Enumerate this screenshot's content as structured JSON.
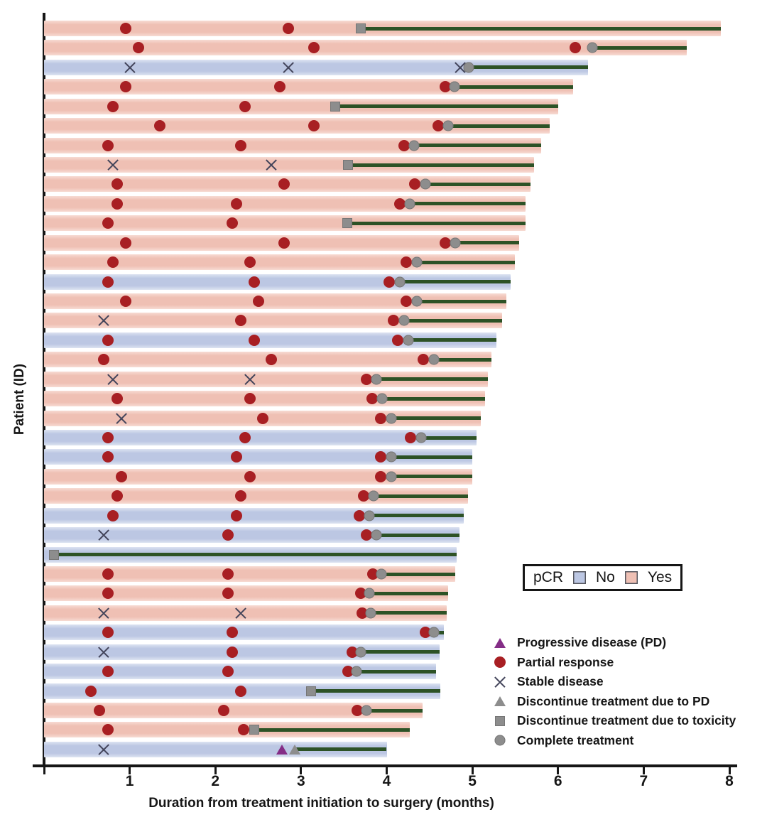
{
  "figure": {
    "x_axis": {
      "label": "Duration from treatment initiation to surgery (months)",
      "ticks": [
        1,
        2,
        3,
        4,
        5,
        6,
        7,
        8
      ],
      "min": 0,
      "max": 8
    },
    "y_axis": {
      "label": "Patient (ID)"
    }
  },
  "pcr_legend": {
    "title": "pCR",
    "items": [
      {
        "label": "No",
        "color": "#bcc7e3"
      },
      {
        "label": "Yes",
        "color": "#efc0b4"
      }
    ]
  },
  "marker_legend": [
    {
      "marker": "pd-triangle",
      "type": "pd",
      "label": "Progressive disease (PD)"
    },
    {
      "marker": "partial-response-circle",
      "type": "pr",
      "label": "Partial response"
    },
    {
      "marker": "stable-disease-x",
      "type": "sd",
      "label": "Stable disease"
    },
    {
      "marker": "discontinue-pd-triangle",
      "type": "dc_pd",
      "label": "Discontinue treatment due to PD"
    },
    {
      "marker": "discontinue-toxicity-square",
      "type": "dc_tox",
      "label": "Discontinue treatment due to toxicity"
    },
    {
      "marker": "complete-treatment-circle",
      "type": "complete",
      "label": "Complete treatment"
    }
  ],
  "colors": {
    "pcr_yes_bar": "#efc0b4",
    "pcr_no_bar": "#bcc7e3",
    "post_treatment_line": "#2d5226",
    "partial_response": "#a81f23",
    "gray_marker": "#8d8d8d",
    "pd_triangle": "#842d86",
    "stable_disease_x": "#42445a",
    "axis": "#161616"
  },
  "chart_data": {
    "type": "swimmer-bar",
    "x_unit": "months",
    "xlim": [
      0,
      8
    ],
    "title": "",
    "xlabel": "Duration from treatment initiation to surgery (months)",
    "ylabel": "Patient (ID)",
    "event_types": {
      "pr": "Partial response",
      "sd": "Stable disease",
      "pd": "Progressive disease (PD)",
      "dc_pd": "Discontinue treatment due to PD",
      "dc_tox": "Discontinue treatment due to toxicity",
      "complete": "Complete treatment"
    },
    "patients": [
      {
        "pcr": "Yes",
        "surgery_month": 7.9,
        "line_start_month": 3.7,
        "events": [
          {
            "type": "pr",
            "month": 0.95
          },
          {
            "type": "pr",
            "month": 2.85
          },
          {
            "type": "dc_tox",
            "month": 3.7
          }
        ]
      },
      {
        "pcr": "Yes",
        "surgery_month": 7.5,
        "line_start_month": 6.4,
        "events": [
          {
            "type": "pr",
            "month": 1.1
          },
          {
            "type": "pr",
            "month": 3.15
          },
          {
            "type": "pr",
            "month": 6.2
          },
          {
            "type": "complete",
            "month": 6.4
          }
        ]
      },
      {
        "pcr": "No",
        "surgery_month": 6.35,
        "line_start_month": 4.96,
        "events": [
          {
            "type": "sd",
            "month": 1.0
          },
          {
            "type": "sd",
            "month": 2.85
          },
          {
            "type": "sd",
            "month": 4.86
          },
          {
            "type": "complete",
            "month": 4.96
          }
        ]
      },
      {
        "pcr": "Yes",
        "surgery_month": 6.18,
        "line_start_month": 4.79,
        "events": [
          {
            "type": "pr",
            "month": 0.95
          },
          {
            "type": "pr",
            "month": 2.75
          },
          {
            "type": "pr",
            "month": 4.68
          },
          {
            "type": "complete",
            "month": 4.79
          }
        ]
      },
      {
        "pcr": "Yes",
        "surgery_month": 6.0,
        "line_start_month": 3.4,
        "events": [
          {
            "type": "pr",
            "month": 0.8
          },
          {
            "type": "pr",
            "month": 2.35
          },
          {
            "type": "dc_tox",
            "month": 3.4
          }
        ]
      },
      {
        "pcr": "Yes",
        "surgery_month": 5.9,
        "line_start_month": 4.72,
        "events": [
          {
            "type": "pr",
            "month": 1.35
          },
          {
            "type": "pr",
            "month": 3.15
          },
          {
            "type": "pr",
            "month": 4.6
          },
          {
            "type": "complete",
            "month": 4.72
          }
        ]
      },
      {
        "pcr": "Yes",
        "surgery_month": 5.8,
        "line_start_month": 4.32,
        "events": [
          {
            "type": "pr",
            "month": 0.75
          },
          {
            "type": "pr",
            "month": 2.3
          },
          {
            "type": "pr",
            "month": 4.2
          },
          {
            "type": "complete",
            "month": 4.32
          }
        ]
      },
      {
        "pcr": "Yes",
        "surgery_month": 5.72,
        "line_start_month": 3.55,
        "events": [
          {
            "type": "sd",
            "month": 0.8
          },
          {
            "type": "sd",
            "month": 2.65
          },
          {
            "type": "dc_tox",
            "month": 3.55
          }
        ]
      },
      {
        "pcr": "Yes",
        "surgery_month": 5.68,
        "line_start_month": 4.45,
        "events": [
          {
            "type": "pr",
            "month": 0.85
          },
          {
            "type": "pr",
            "month": 2.8
          },
          {
            "type": "pr",
            "month": 4.33
          },
          {
            "type": "complete",
            "month": 4.45
          }
        ]
      },
      {
        "pcr": "Yes",
        "surgery_month": 5.62,
        "line_start_month": 4.27,
        "events": [
          {
            "type": "pr",
            "month": 0.85
          },
          {
            "type": "pr",
            "month": 2.25
          },
          {
            "type": "pr",
            "month": 4.15
          },
          {
            "type": "complete",
            "month": 4.27
          }
        ]
      },
      {
        "pcr": "Yes",
        "surgery_month": 5.62,
        "line_start_month": 3.54,
        "events": [
          {
            "type": "pr",
            "month": 0.75
          },
          {
            "type": "pr",
            "month": 2.2
          },
          {
            "type": "dc_tox",
            "month": 3.54
          }
        ]
      },
      {
        "pcr": "Yes",
        "surgery_month": 5.55,
        "line_start_month": 4.8,
        "events": [
          {
            "type": "pr",
            "month": 0.95
          },
          {
            "type": "pr",
            "month": 2.8
          },
          {
            "type": "pr",
            "month": 4.68
          },
          {
            "type": "complete",
            "month": 4.8
          }
        ]
      },
      {
        "pcr": "Yes",
        "surgery_month": 5.5,
        "line_start_month": 4.35,
        "events": [
          {
            "type": "pr",
            "month": 0.8
          },
          {
            "type": "pr",
            "month": 2.4
          },
          {
            "type": "pr",
            "month": 4.23
          },
          {
            "type": "complete",
            "month": 4.35
          }
        ]
      },
      {
        "pcr": "No",
        "surgery_month": 5.45,
        "line_start_month": 4.15,
        "events": [
          {
            "type": "pr",
            "month": 0.75
          },
          {
            "type": "pr",
            "month": 2.45
          },
          {
            "type": "pr",
            "month": 4.03
          },
          {
            "type": "complete",
            "month": 4.15
          }
        ]
      },
      {
        "pcr": "Yes",
        "surgery_month": 5.4,
        "line_start_month": 4.35,
        "events": [
          {
            "type": "pr",
            "month": 0.95
          },
          {
            "type": "pr",
            "month": 2.5
          },
          {
            "type": "pr",
            "month": 4.23
          },
          {
            "type": "complete",
            "month": 4.35
          }
        ]
      },
      {
        "pcr": "Yes",
        "surgery_month": 5.35,
        "line_start_month": 4.2,
        "events": [
          {
            "type": "sd",
            "month": 0.7
          },
          {
            "type": "pr",
            "month": 2.3
          },
          {
            "type": "pr",
            "month": 4.08
          },
          {
            "type": "complete",
            "month": 4.2
          }
        ]
      },
      {
        "pcr": "No",
        "surgery_month": 5.28,
        "line_start_month": 4.25,
        "events": [
          {
            "type": "pr",
            "month": 0.75
          },
          {
            "type": "pr",
            "month": 2.45
          },
          {
            "type": "pr",
            "month": 4.13
          },
          {
            "type": "complete",
            "month": 4.25
          }
        ]
      },
      {
        "pcr": "Yes",
        "surgery_month": 5.22,
        "line_start_month": 4.55,
        "events": [
          {
            "type": "pr",
            "month": 0.7
          },
          {
            "type": "pr",
            "month": 2.65
          },
          {
            "type": "pr",
            "month": 4.43
          },
          {
            "type": "complete",
            "month": 4.55
          }
        ]
      },
      {
        "pcr": "Yes",
        "surgery_month": 5.18,
        "line_start_month": 3.88,
        "events": [
          {
            "type": "sd",
            "month": 0.8
          },
          {
            "type": "sd",
            "month": 2.4
          },
          {
            "type": "pr",
            "month": 3.76
          },
          {
            "type": "complete",
            "month": 3.88
          }
        ]
      },
      {
        "pcr": "Yes",
        "surgery_month": 5.15,
        "line_start_month": 3.95,
        "events": [
          {
            "type": "pr",
            "month": 0.85
          },
          {
            "type": "pr",
            "month": 2.4
          },
          {
            "type": "pr",
            "month": 3.83
          },
          {
            "type": "complete",
            "month": 3.95
          }
        ]
      },
      {
        "pcr": "Yes",
        "surgery_month": 5.1,
        "line_start_month": 4.05,
        "events": [
          {
            "type": "sd",
            "month": 0.9
          },
          {
            "type": "pr",
            "month": 2.55
          },
          {
            "type": "pr",
            "month": 3.93
          },
          {
            "type": "complete",
            "month": 4.05
          }
        ]
      },
      {
        "pcr": "No",
        "surgery_month": 5.05,
        "line_start_month": 4.4,
        "events": [
          {
            "type": "pr",
            "month": 0.75
          },
          {
            "type": "pr",
            "month": 2.35
          },
          {
            "type": "pr",
            "month": 4.28
          },
          {
            "type": "complete",
            "month": 4.4
          }
        ]
      },
      {
        "pcr": "No",
        "surgery_month": 5.0,
        "line_start_month": 4.05,
        "events": [
          {
            "type": "pr",
            "month": 0.75
          },
          {
            "type": "pr",
            "month": 2.25
          },
          {
            "type": "pr",
            "month": 3.93
          },
          {
            "type": "complete",
            "month": 4.05
          }
        ]
      },
      {
        "pcr": "Yes",
        "surgery_month": 5.0,
        "line_start_month": 4.05,
        "events": [
          {
            "type": "pr",
            "month": 0.9
          },
          {
            "type": "pr",
            "month": 2.4
          },
          {
            "type": "pr",
            "month": 3.93
          },
          {
            "type": "complete",
            "month": 4.05
          }
        ]
      },
      {
        "pcr": "Yes",
        "surgery_month": 4.95,
        "line_start_month": 3.85,
        "events": [
          {
            "type": "pr",
            "month": 0.85
          },
          {
            "type": "pr",
            "month": 2.3
          },
          {
            "type": "pr",
            "month": 3.73
          },
          {
            "type": "complete",
            "month": 3.85
          }
        ]
      },
      {
        "pcr": "No",
        "surgery_month": 4.9,
        "line_start_month": 3.8,
        "events": [
          {
            "type": "pr",
            "month": 0.8
          },
          {
            "type": "pr",
            "month": 2.25
          },
          {
            "type": "pr",
            "month": 3.68
          },
          {
            "type": "complete",
            "month": 3.8
          }
        ]
      },
      {
        "pcr": "No",
        "surgery_month": 4.85,
        "line_start_month": 3.88,
        "events": [
          {
            "type": "sd",
            "month": 0.7
          },
          {
            "type": "pr",
            "month": 2.15
          },
          {
            "type": "pr",
            "month": 3.76
          },
          {
            "type": "complete",
            "month": 3.88
          }
        ]
      },
      {
        "pcr": "No",
        "surgery_month": 4.82,
        "line_start_month": 0.12,
        "events": [
          {
            "type": "dc_tox",
            "month": 0.12
          }
        ]
      },
      {
        "pcr": "Yes",
        "surgery_month": 4.8,
        "line_start_month": 3.94,
        "events": [
          {
            "type": "pr",
            "month": 0.75
          },
          {
            "type": "pr",
            "month": 2.15
          },
          {
            "type": "pr",
            "month": 3.84
          },
          {
            "type": "complete",
            "month": 3.94
          }
        ]
      },
      {
        "pcr": "Yes",
        "surgery_month": 4.72,
        "line_start_month": 3.8,
        "events": [
          {
            "type": "pr",
            "month": 0.75
          },
          {
            "type": "pr",
            "month": 2.15
          },
          {
            "type": "pr",
            "month": 3.7
          },
          {
            "type": "complete",
            "month": 3.8
          }
        ]
      },
      {
        "pcr": "Yes",
        "surgery_month": 4.7,
        "line_start_month": 3.81,
        "events": [
          {
            "type": "sd",
            "month": 0.7
          },
          {
            "type": "sd",
            "month": 2.3
          },
          {
            "type": "pr",
            "month": 3.71
          },
          {
            "type": "complete",
            "month": 3.81
          }
        ]
      },
      {
        "pcr": "No",
        "surgery_month": 4.67,
        "line_start_month": 4.55,
        "events": [
          {
            "type": "pr",
            "month": 0.75
          },
          {
            "type": "pr",
            "month": 2.2
          },
          {
            "type": "pr",
            "month": 4.45
          },
          {
            "type": "complete",
            "month": 4.55
          }
        ]
      },
      {
        "pcr": "No",
        "surgery_month": 4.62,
        "line_start_month": 3.7,
        "events": [
          {
            "type": "sd",
            "month": 0.7
          },
          {
            "type": "pr",
            "month": 2.2
          },
          {
            "type": "pr",
            "month": 3.6
          },
          {
            "type": "complete",
            "month": 3.7
          }
        ]
      },
      {
        "pcr": "No",
        "surgery_month": 4.58,
        "line_start_month": 3.65,
        "events": [
          {
            "type": "pr",
            "month": 0.75
          },
          {
            "type": "pr",
            "month": 2.15
          },
          {
            "type": "pr",
            "month": 3.55
          },
          {
            "type": "complete",
            "month": 3.65
          }
        ]
      },
      {
        "pcr": "No",
        "surgery_month": 4.63,
        "line_start_month": 3.12,
        "events": [
          {
            "type": "pr",
            "month": 0.55
          },
          {
            "type": "pr",
            "month": 2.3
          },
          {
            "type": "dc_tox",
            "month": 3.12
          }
        ]
      },
      {
        "pcr": "Yes",
        "surgery_month": 4.42,
        "line_start_month": 3.76,
        "events": [
          {
            "type": "pr",
            "month": 0.65
          },
          {
            "type": "pr",
            "month": 2.1
          },
          {
            "type": "pr",
            "month": 3.66
          },
          {
            "type": "complete",
            "month": 3.76
          }
        ]
      },
      {
        "pcr": "Yes",
        "surgery_month": 4.27,
        "line_start_month": 2.45,
        "events": [
          {
            "type": "pr",
            "month": 0.75
          },
          {
            "type": "pr",
            "month": 2.33
          },
          {
            "type": "dc_tox",
            "month": 2.45
          }
        ]
      },
      {
        "pcr": "No",
        "surgery_month": 4.0,
        "line_start_month": 2.93,
        "events": [
          {
            "type": "sd",
            "month": 0.7
          },
          {
            "type": "pd",
            "month": 2.78
          },
          {
            "type": "dc_pd",
            "month": 2.93
          }
        ]
      }
    ]
  }
}
